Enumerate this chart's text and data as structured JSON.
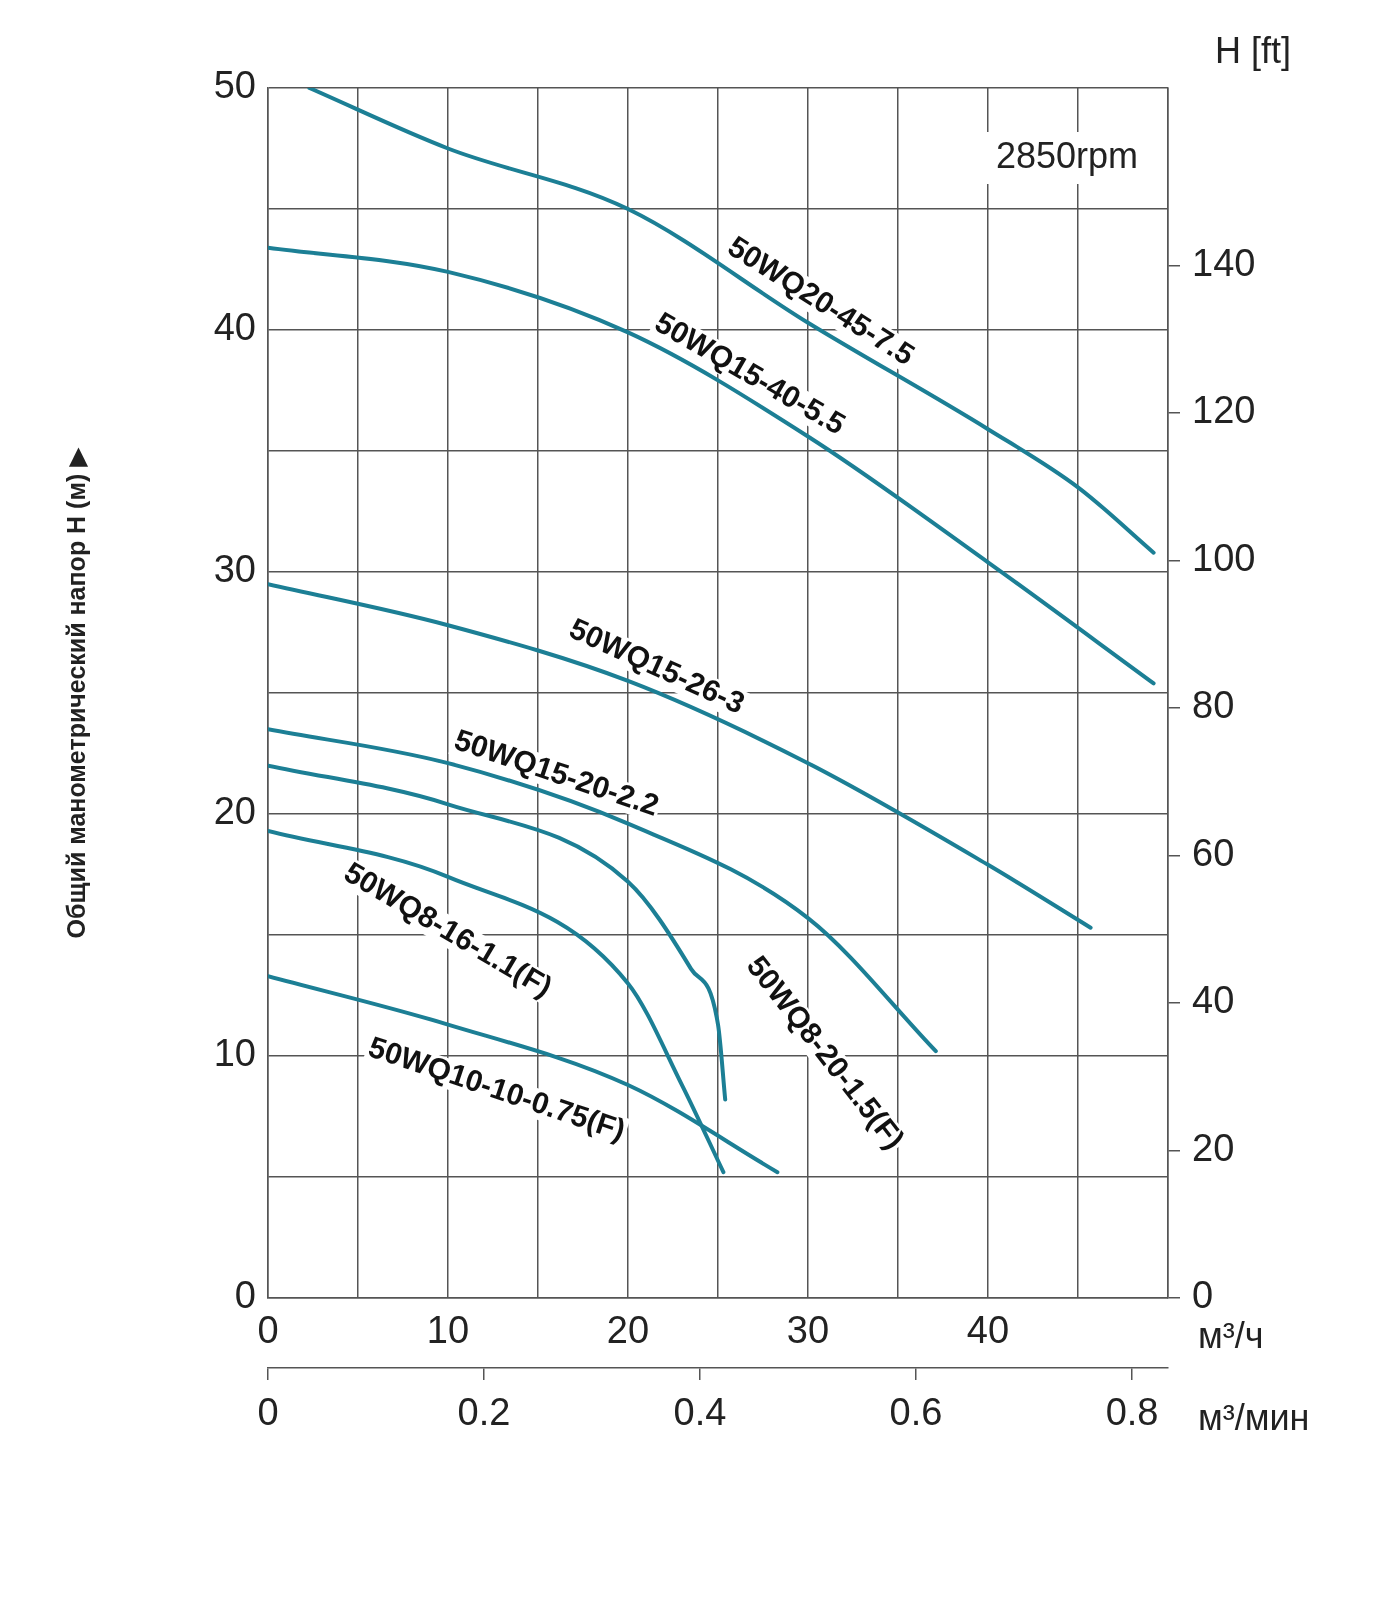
{
  "chart_data": {
    "type": "line",
    "xlabel": "м³/ч",
    "x2label": "м³/мин",
    "ylabel": "Общий манометрический напор H (м) ▶",
    "y2label": "H [ft]",
    "xlim": [
      0,
      50
    ],
    "xticks": [
      0,
      {
        "value": 5,
        "label": null
      },
      10,
      {
        "value": 15,
        "label": null
      },
      20,
      {
        "value": 25,
        "label": null
      },
      30,
      {
        "value": 35,
        "label": null
      },
      40,
      {
        "value": 45,
        "label": null
      },
      {
        "value": 50,
        "label": null
      }
    ],
    "x2lim": [
      0,
      0.8333
    ],
    "x2ticks": [
      0,
      0.2,
      0.4,
      0.6,
      0.8
    ],
    "ylim": [
      0,
      50
    ],
    "yticks": [
      0,
      {
        "value": 5,
        "label": null
      },
      10,
      {
        "value": 15,
        "label": null
      },
      20,
      {
        "value": 25,
        "label": null
      },
      30,
      {
        "value": 35,
        "label": null
      },
      40,
      {
        "value": 45,
        "label": null
      },
      50
    ],
    "y2lim": [
      0,
      164.04
    ],
    "y2ticks": [
      0,
      20,
      40,
      60,
      80,
      100,
      120,
      140
    ],
    "grid": true,
    "annotations": [
      "2850rpm"
    ],
    "series": [
      {
        "name": "50WQ20-45-7.5",
        "color": "#1c7f95",
        "x": [
          2.3,
          10,
          20,
          30,
          40,
          45,
          49.2
        ],
        "values": [
          50,
          47.5,
          45,
          40.3,
          35.9,
          33.5,
          30.8
        ]
      },
      {
        "name": "50WQ15-40-5.5",
        "color": "#1c7f95",
        "x": [
          0,
          10,
          20,
          30,
          40,
          49.2
        ],
        "values": [
          43.4,
          42.4,
          39.9,
          35.6,
          30.4,
          25.4
        ]
      },
      {
        "name": "50WQ15-26-3",
        "color": "#1c7f95",
        "x": [
          0,
          10,
          20,
          30,
          40,
          45.7
        ],
        "values": [
          29.5,
          27.8,
          25.5,
          22.1,
          17.9,
          15.3
        ]
      },
      {
        "name": "50WQ15-20-2.2",
        "color": "#1c7f95",
        "x": [
          0,
          10,
          20,
          30,
          37.1
        ],
        "values": [
          23.5,
          22.1,
          19.6,
          15.7,
          10.2
        ]
      },
      {
        "name": "50WQ8-20-1.5(F)",
        "color": "#1c7f95",
        "x": [
          0,
          10,
          20,
          23.5,
          25,
          25.4
        ],
        "values": [
          22,
          20.4,
          17.2,
          13.6,
          11.3,
          8.2
        ]
      },
      {
        "name": "50WQ8-16-1.1(F)",
        "color": "#1c7f95",
        "x": [
          0,
          10,
          20,
          23,
          25.3
        ],
        "values": [
          19.3,
          17.4,
          13,
          8.8,
          5.2
        ]
      },
      {
        "name": "50WQ10-10-0.75(F)",
        "color": "#1c7f95",
        "x": [
          0,
          10,
          20,
          28.3
        ],
        "values": [
          13.3,
          11.3,
          8.8,
          5.2
        ]
      }
    ]
  }
}
